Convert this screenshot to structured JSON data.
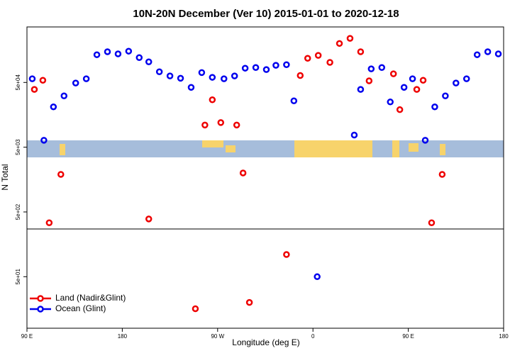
{
  "chart_data": {
    "type": "scatter",
    "title": "10N-20N December (Ver 10)   2015-01-01 to 2020-12-18",
    "x_label": "Longitude (deg E)",
    "y_label": "N Total",
    "log_y": true,
    "legend": "bottom-left",
    "xlim": [
      90,
      540
    ],
    "xticks": [
      {
        "value": 90,
        "label": "90 E"
      },
      {
        "value": 180,
        "label": "180"
      },
      {
        "value": 270,
        "label": "90 W"
      },
      {
        "value": 360,
        "label": "0"
      },
      {
        "value": 450,
        "label": "90 E"
      },
      {
        "value": 540,
        "label": "180"
      }
    ],
    "ylim": [
      8,
      360000
    ],
    "yticks": [
      {
        "value": 50,
        "label": "5e+01"
      },
      {
        "value": 500,
        "label": "5e+02"
      },
      {
        "value": 5000,
        "label": "5e+03"
      },
      {
        "value": 50000,
        "label": "5e+04"
      }
    ],
    "series": [
      {
        "name": "Land (Nadir&Glint)",
        "color": "#ee0000",
        "x": [
          97,
          105,
          111,
          122,
          205,
          249,
          258,
          265,
          273,
          288,
          294,
          300,
          335,
          348,
          355,
          365,
          376,
          385,
          395,
          405,
          413,
          436,
          442,
          458,
          464,
          472,
          482
        ],
        "values": [
          39000,
          54000,
          340,
          1900,
          390,
          16,
          11000,
          27000,
          12000,
          11000,
          2000,
          20,
          110,
          64000,
          118000,
          131000,
          102000,
          200000,
          240000,
          149000,
          53000,
          68000,
          19000,
          39000,
          54000,
          340,
          1900
        ]
      },
      {
        "name": "Ocean (Glint)",
        "color": "#0000ee",
        "x": [
          95,
          106,
          115,
          125,
          136,
          146,
          156,
          166,
          176,
          186,
          196,
          205,
          215,
          225,
          235,
          245,
          255,
          265,
          276,
          286,
          296,
          306,
          316,
          325,
          335,
          342,
          364,
          399,
          405,
          415,
          425,
          433,
          446,
          454,
          466,
          475,
          485,
          495,
          505,
          515,
          525,
          535
        ],
        "values": [
          57000,
          6400,
          21000,
          31000,
          49000,
          57000,
          134000,
          149000,
          138000,
          152000,
          121000,
          104000,
          73000,
          63000,
          58000,
          42000,
          71000,
          60000,
          57000,
          63000,
          83000,
          85000,
          79000,
          92000,
          94000,
          26000,
          50,
          7700,
          39000,
          81000,
          85000,
          25000,
          42000,
          57000,
          6400,
          21000,
          31000,
          49000,
          57000,
          134000,
          149000,
          138000
        ]
      }
    ]
  }
}
